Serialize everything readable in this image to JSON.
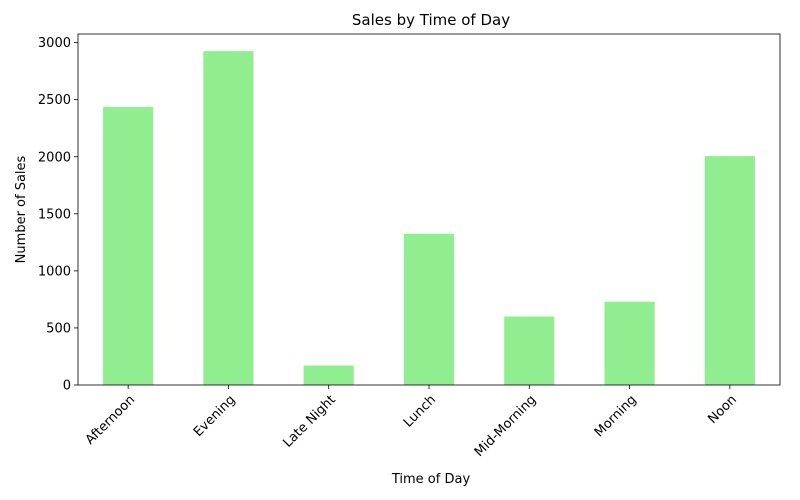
{
  "chart_data": {
    "type": "bar",
    "title": "Sales by Time of Day",
    "xlabel": "Time of Day",
    "ylabel": "Number of Sales",
    "categories": [
      "Afternoon",
      "Evening",
      "Late Night",
      "Lunch",
      "Mid-Morning",
      "Morning",
      "Noon"
    ],
    "values": [
      2435,
      2925,
      170,
      1325,
      600,
      730,
      2005
    ],
    "ylim": [
      0,
      3075
    ],
    "yticks": [
      0,
      500,
      1000,
      1500,
      2000,
      2500,
      3000
    ],
    "bar_color": "#90ee90",
    "grid": false,
    "legend": "none"
  }
}
